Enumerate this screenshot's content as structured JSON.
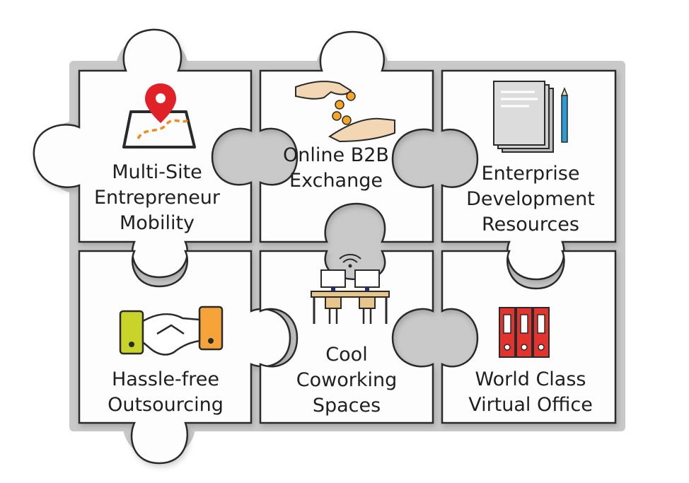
{
  "pieces": [
    {
      "id": "multi-site",
      "icon": "map-pin-icon",
      "lines": [
        "Multi-Site",
        "Entrepreneur",
        "Mobility"
      ]
    },
    {
      "id": "online-b2b",
      "icon": "hands-coins-icon",
      "lines": [
        "Online B2B",
        "Exchange"
      ]
    },
    {
      "id": "enterprise",
      "icon": "documents-pencil-icon",
      "lines": [
        "Enterprise",
        "Development",
        "Resources"
      ]
    },
    {
      "id": "outsourcing",
      "icon": "handshake-icon",
      "lines": [
        "Hassle-free",
        "Outsourcing"
      ]
    },
    {
      "id": "coworking",
      "icon": "coworking-desk-icon",
      "lines": [
        "Cool",
        "Coworking",
        "Spaces"
      ]
    },
    {
      "id": "virtual-office",
      "icon": "binders-icon",
      "lines": [
        "World Class",
        "Virtual Office"
      ]
    }
  ],
  "colors": {
    "piece_fill": "#fdfdfd",
    "gap": "#c8c8c8",
    "outline": "#2a2a2a",
    "pin_red": "#e02128",
    "route_orange": "#f08c1e",
    "coin_orange": "#f5a623",
    "pencil_blue": "#2b9bd6",
    "hand_lime": "#c9d42a",
    "hand_orange": "#f6a33a",
    "desk_tan": "#e8c58a",
    "binder_red": "#e2332f"
  }
}
